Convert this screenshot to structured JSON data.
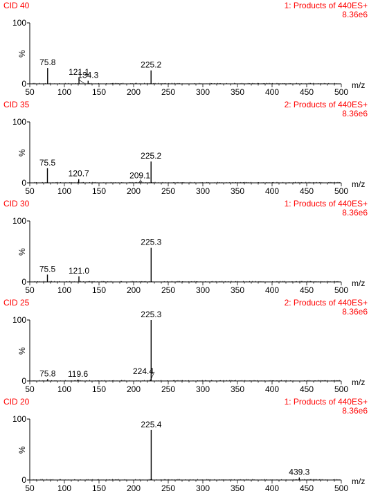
{
  "theme": {
    "label_red": "#ff0000",
    "ink": "#000000"
  },
  "chart_data": [
    {
      "type": "bar",
      "title": "CID 40",
      "subtitle": "1: Products of 440ES+",
      "scale": "8.36e6",
      "xlabel": "m/z",
      "ylabel": "%",
      "xlim": [
        50,
        500
      ],
      "ylim": [
        0,
        100
      ],
      "xticks": [
        "50",
        "100",
        "150",
        "200",
        "250",
        "300",
        "350",
        "400",
        "450",
        "500"
      ],
      "yticks": [
        "0",
        "100"
      ],
      "peaks": [
        [
          75.8,
          26
        ],
        [
          121.1,
          10
        ],
        [
          134.3,
          5
        ],
        [
          225.2,
          22
        ]
      ],
      "labels": [
        {
          "text": "75.8",
          "x": 75.8,
          "y": 26
        },
        {
          "text": "121.1",
          "x": 121.1,
          "y": 10
        },
        {
          "text": "134.3",
          "x": 134.3,
          "y": 5
        },
        {
          "text": "225.2",
          "x": 225.2,
          "y": 22
        }
      ]
    },
    {
      "type": "bar",
      "title": "CID 35",
      "subtitle": "2: Products of 440ES+",
      "scale": "8.36e6",
      "xlabel": "m/z",
      "ylabel": "%",
      "xlim": [
        50,
        500
      ],
      "ylim": [
        0,
        100
      ],
      "xticks": [
        "50",
        "100",
        "150",
        "200",
        "250",
        "300",
        "350",
        "400",
        "450",
        "500"
      ],
      "yticks": [
        "0",
        "100"
      ],
      "peaks": [
        [
          75.5,
          24
        ],
        [
          120.7,
          6
        ],
        [
          209.1,
          3
        ],
        [
          225.2,
          35
        ]
      ],
      "labels": [
        {
          "text": "75.5",
          "x": 75.5,
          "y": 24
        },
        {
          "text": "120.7",
          "x": 120.7,
          "y": 6
        },
        {
          "text": "209.1",
          "x": 209.1,
          "y": 3
        },
        {
          "text": "225.2",
          "x": 225.2,
          "y": 35
        }
      ]
    },
    {
      "type": "bar",
      "title": "CID 30",
      "subtitle": "1: Products of 440ES+",
      "scale": "8.36e6",
      "xlabel": "m/z",
      "ylabel": "%",
      "xlim": [
        50,
        500
      ],
      "ylim": [
        0,
        100
      ],
      "xticks": [
        "50",
        "100",
        "150",
        "200",
        "250",
        "300",
        "350",
        "400",
        "450",
        "500"
      ],
      "yticks": [
        "0",
        "100"
      ],
      "peaks": [
        [
          75.5,
          12
        ],
        [
          121.0,
          9
        ],
        [
          225.3,
          56
        ]
      ],
      "labels": [
        {
          "text": "75.5",
          "x": 75.5,
          "y": 12
        },
        {
          "text": "121.0",
          "x": 121.0,
          "y": 9
        },
        {
          "text": "225.3",
          "x": 225.3,
          "y": 56
        }
      ]
    },
    {
      "type": "bar",
      "title": "CID 25",
      "subtitle": "2: Products of 440ES+",
      "scale": "8.36e6",
      "xlabel": "m/z",
      "ylabel": "%",
      "xlim": [
        50,
        500
      ],
      "ylim": [
        0,
        100
      ],
      "xticks": [
        "50",
        "100",
        "150",
        "200",
        "250",
        "300",
        "350",
        "400",
        "450",
        "500"
      ],
      "yticks": [
        "0",
        "100"
      ],
      "peaks": [
        [
          75.8,
          3
        ],
        [
          119.6,
          2
        ],
        [
          224.4,
          2
        ],
        [
          225.3,
          100
        ]
      ],
      "labels": [
        {
          "text": "75.8",
          "x": 75.8,
          "y": 3
        },
        {
          "text": "119.6",
          "x": 119.6,
          "y": 2
        },
        {
          "text": "224.4",
          "x": 214,
          "y": 7
        },
        {
          "text": "225.3",
          "x": 225.3,
          "y": 100
        }
      ]
    },
    {
      "type": "bar",
      "title": "CID 20",
      "subtitle": "1: Products of 440ES+",
      "scale": "8.36e6",
      "xlabel": "m/z",
      "ylabel": "%",
      "xlim": [
        50,
        500
      ],
      "ylim": [
        0,
        100
      ],
      "xticks": [
        "50",
        "100",
        "150",
        "200",
        "250",
        "300",
        "350",
        "400",
        "450",
        "500"
      ],
      "yticks": [
        "0",
        "100"
      ],
      "peaks": [
        [
          225.4,
          82
        ],
        [
          439.3,
          4
        ]
      ],
      "labels": [
        {
          "text": "225.4",
          "x": 225.4,
          "y": 82
        },
        {
          "text": "439.3",
          "x": 439.3,
          "y": 4
        }
      ]
    }
  ]
}
